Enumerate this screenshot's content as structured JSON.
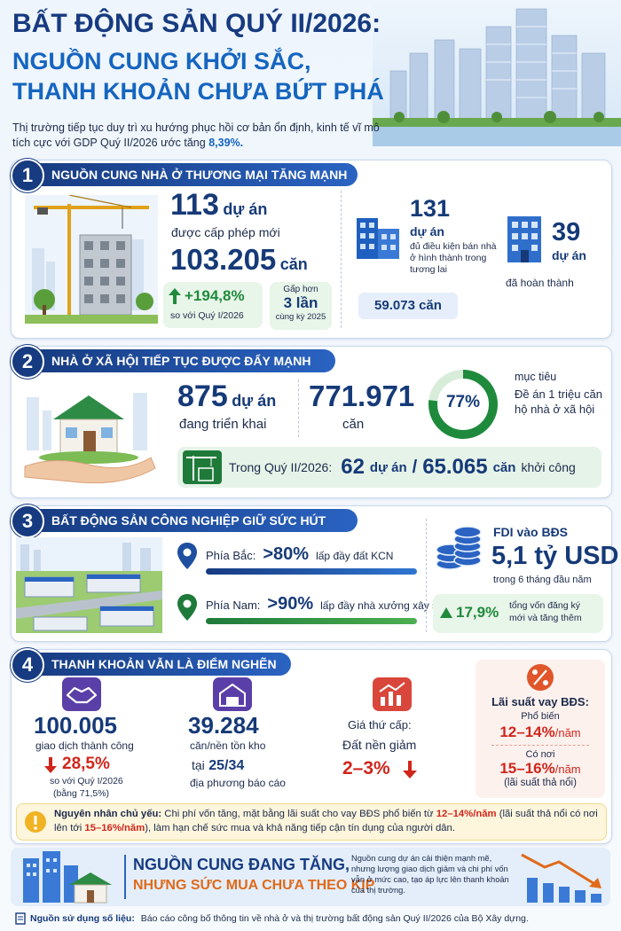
{
  "header": {
    "title": "BẤT ĐỘNG SẢN QUÝ II/2026:",
    "subtitle_lines": [
      "NGUỒN CUNG KHỞI SẮC,",
      "THANH KHOẢN CHƯA BỨT PHÁ"
    ],
    "intro": {
      "text": "Thị trường tiếp tục duy trì xu hướng phục hồi cơ bản ổn định, kinh tế vĩ mô tích cực với GDP Quý II/2026 ước tăng",
      "highlight": "8,39%."
    }
  },
  "section1": {
    "number": "1",
    "title": "NGUỒN CUNG NHÀ Ở THƯƠNG MẠI TĂNG MẠNH",
    "licensed": {
      "value": "113",
      "unit": "dự án",
      "caption": "được cấp phép mới"
    },
    "units": {
      "value": "103.205",
      "unit": "căn"
    },
    "growth": {
      "value": "+194,8%",
      "caption": "so với Quý I/2026"
    },
    "comparison": {
      "prefix": "Gấp hơn",
      "value": "3 lần",
      "caption": "cùng kỳ 2025"
    },
    "eligible": {
      "value": "131",
      "unit": "dự án",
      "caption": "đủ điều kiện bán nhà ở hình thành trong tương lai",
      "units": "59.073 căn"
    },
    "completed": {
      "value": "39",
      "unit": "dự án",
      "caption": "đã hoàn thành"
    }
  },
  "section2": {
    "number": "2",
    "title": "NHÀ Ở XÃ HỘI TIẾP TỤC ĐƯỢC ĐẨY MẠNH",
    "projects": {
      "value": "875",
      "unit": "dự án",
      "caption": "đang triển khai"
    },
    "units": {
      "value": "771.971",
      "unit": "căn"
    },
    "ring": {
      "value": 77,
      "label": "77%"
    },
    "target": {
      "label": "mục tiêu",
      "text": "Đề án 1 triệu căn hộ nhà ở xã hội"
    },
    "started": {
      "label": "Trong Quý II/2026:",
      "projects": "62",
      "projects_unit": "dự án",
      "separator": "/",
      "units": "65.065",
      "units_unit": "căn",
      "suffix": "khởi công"
    }
  },
  "section3": {
    "number": "3",
    "title": "BẤT ĐỘNG SẢN CÔNG NGHIỆP GIỮ SỨC HÚT",
    "north": {
      "label": "Phía Bắc:",
      "value": ">80%",
      "caption": "lấp đầy đất KCN"
    },
    "south": {
      "label": "Phía Nam:",
      "value": ">90%",
      "caption": "lấp đầy nhà xưởng xây sẵn"
    },
    "fdi": {
      "label": "FDI vào BĐS",
      "value": "5,1 tỷ USD",
      "caption": "trong 6 tháng đầu năm",
      "growth": "17,9%",
      "growth_caption": "tổng vốn đăng ký mới và tăng thêm"
    }
  },
  "section4": {
    "number": "4",
    "title": "THANH KHOẢN VẪN LÀ ĐIỂM NGHẼN",
    "transactions": {
      "value": "100.005",
      "caption": "giao dịch thành công",
      "change": "28,5%",
      "change_caption": "so với Quý I/2026",
      "change_note": "(bằng 71,5%)"
    },
    "inventory": {
      "value": "39.284",
      "caption": "căn/nền tồn kho",
      "locality_prefix": "tại",
      "localities": "25/34",
      "locality_caption": "địa phương báo cáo"
    },
    "secondary": {
      "label": "Giá thứ cấp:",
      "caption": "Đất nền giảm",
      "value": "2–3%"
    },
    "interest": {
      "label": "Lãi suất vay BĐS:",
      "common_label": "Phổ biến",
      "common_value": "12–14%",
      "unit": "/năm",
      "high_label": "Có nơi",
      "high_value": "15–16%",
      "note": "(lãi suất thả nổi)"
    },
    "cause": {
      "label": "Nguyên nhân chủ yếu:",
      "parts": [
        " Chi phí vốn tăng, mặt bằng lãi suất cho vay BĐS phổ biến từ ",
        "12–14%/năm",
        " (lãi suất thả nổi có nơi lên tới ",
        "15–16%/năm",
        "), làm hạn chế sức mua và khả năng tiếp cận tín dụng của người dân."
      ]
    }
  },
  "footer": {
    "headline": [
      "NGUỒN CUNG ĐANG TĂNG,",
      "NHƯNG SỨC MUA CHƯA THEO KỊP"
    ],
    "text": "Nguồn cung dự án cải thiện mạnh mẽ, nhưng lượng giao dịch giảm và chi phí vốn vẫn ở mức cao, tạo áp lực lên thanh khoản của thị trường.",
    "source_label": "Nguồn sử dụng số liệu:",
    "source_text": "Báo cáo công bố thông tin về nhà ở và thị trường bất động sản Quý II/2026 của Bộ Xây dựng."
  }
}
